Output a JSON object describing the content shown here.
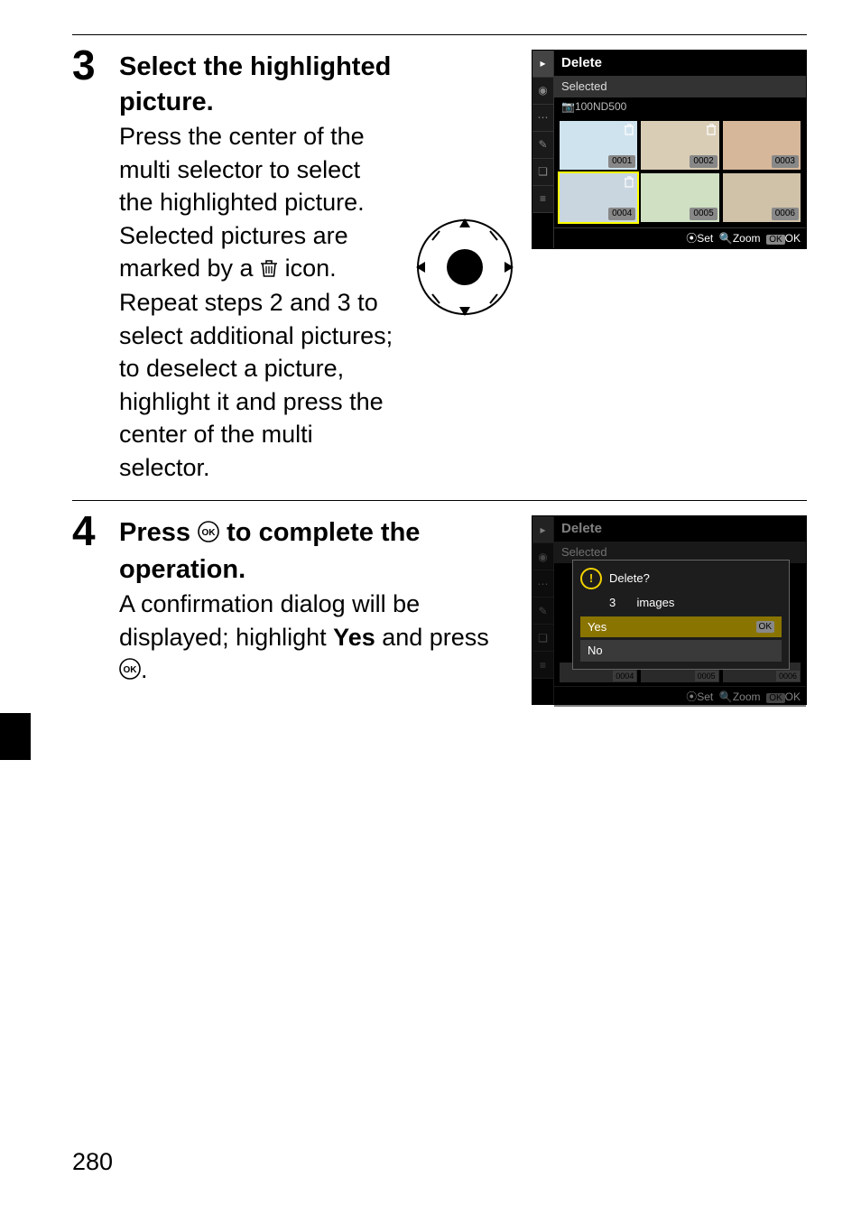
{
  "page_number": "280",
  "step3": {
    "number": "3",
    "title": "Select the highlighted picture.",
    "body_before_icon": "Press the center of the multi selector to select the highlighted picture. Selected pictures are marked by a ",
    "body_after_icon": " icon. Repeat steps 2 and 3 to select additional pictures; to deselect a picture, highlight it and press the center of the multi selector."
  },
  "step4": {
    "number": "4",
    "title_before": "Press ",
    "title_after": " to complete the operation.",
    "body_before": "A confirmation dialog will be displayed; highlight ",
    "body_bold": "Yes",
    "body_after": " and press ",
    "body_end": "."
  },
  "screen1": {
    "title": "Delete",
    "sub": "Selected",
    "path_prefix": "📷100ND500 ",
    "thumbs": [
      {
        "num": "0001",
        "mark": true,
        "bg": "#cfe3ef"
      },
      {
        "num": "0002",
        "mark": true,
        "bg": "#d9cdb6"
      },
      {
        "num": "0003",
        "mark": false,
        "bg": "#d6b79a"
      },
      {
        "num": "0004",
        "mark": true,
        "bg": "#c9d6e0",
        "sel": true
      },
      {
        "num": "0005",
        "mark": false,
        "bg": "#cfe0c3"
      },
      {
        "num": "0006",
        "mark": false,
        "bg": "#d0c2a8"
      }
    ],
    "footer_set": "Set",
    "footer_zoom": "Zoom",
    "footer_ok": "OK"
  },
  "screen2": {
    "title": "Delete",
    "sub": "Selected",
    "dialog_q": "Delete?",
    "dialog_count": "3",
    "dialog_count_unit": "images",
    "opt_yes": "Yes",
    "opt_no": "No",
    "thumbs_bottom": [
      "0004",
      "0005",
      "0006"
    ],
    "footer_set": "Set",
    "footer_zoom": "Zoom",
    "footer_ok": "OK"
  },
  "colors": {
    "text": "#000000",
    "bg": "#ffffff",
    "screen_bg": "#000000",
    "highlight": "#8a7400"
  }
}
